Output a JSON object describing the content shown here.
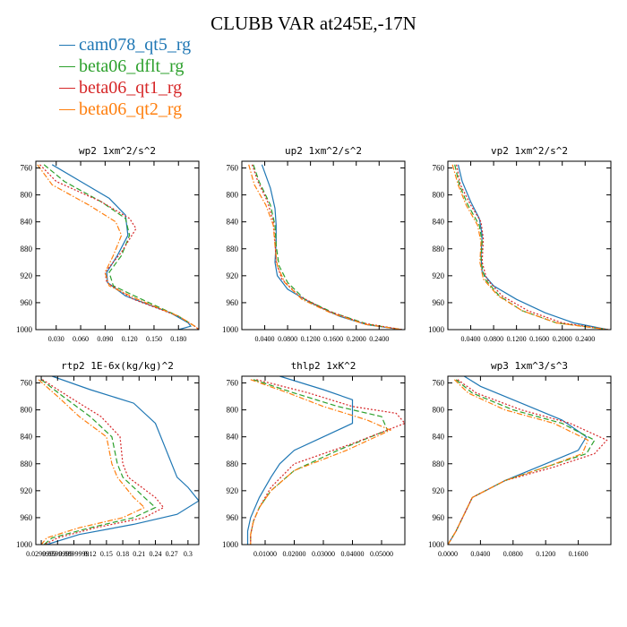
{
  "title": "CLUBB VAR at245E,-17N",
  "legend": [
    {
      "label": "cam078_qt5_rg",
      "color": "#1f77b4",
      "dash": "solid"
    },
    {
      "label": "beta06_dflt_rg",
      "color": "#2ca02c",
      "dash": "dashed"
    },
    {
      "label": "beta06_qt1_rg",
      "color": "#d62728",
      "dash": "dotted"
    },
    {
      "label": "beta06_qt2_rg",
      "color": "#ff7f0e",
      "dash": "dashdot"
    }
  ],
  "chart_data": [
    {
      "type": "line",
      "title": "wp2  1xm^2/s^2",
      "ylim": [
        1000,
        750
      ],
      "yticks": [
        760,
        800,
        840,
        880,
        920,
        960,
        1000
      ],
      "xlim": [
        0.005,
        0.205
      ],
      "xticks": [
        "0.030",
        "0.060",
        "0.090",
        "0.120",
        "0.150",
        "0.180"
      ],
      "xtick_values": [
        0.03,
        0.06,
        0.09,
        0.12,
        0.15,
        0.18
      ],
      "series": [
        {
          "name": "cam078_qt5_rg",
          "x": [
            0.025,
            0.06,
            0.095,
            0.115,
            0.118,
            0.105,
            0.092,
            0.093,
            0.115,
            0.17,
            0.192,
            0.195,
            0.18
          ],
          "y": [
            755,
            780,
            805,
            830,
            860,
            890,
            915,
            930,
            950,
            975,
            990,
            995,
            1000
          ]
        },
        {
          "name": "beta06_dflt_rg",
          "x": [
            0.015,
            0.04,
            0.085,
            0.115,
            0.12,
            0.11,
            0.095,
            0.1,
            0.135,
            0.18,
            0.2,
            0.205
          ],
          "y": [
            755,
            780,
            810,
            835,
            860,
            890,
            915,
            935,
            955,
            980,
            995,
            1000
          ]
        },
        {
          "name": "beta06_qt1_rg",
          "x": [
            0.01,
            0.03,
            0.085,
            0.12,
            0.128,
            0.11,
            0.09,
            0.092,
            0.125,
            0.18,
            0.2,
            0.205
          ],
          "y": [
            755,
            780,
            810,
            835,
            850,
            885,
            915,
            930,
            955,
            980,
            995,
            1000
          ]
        },
        {
          "name": "beta06_qt2_rg",
          "x": [
            0.007,
            0.025,
            0.07,
            0.103,
            0.11,
            0.1,
            0.09,
            0.095,
            0.13,
            0.18,
            0.2,
            0.205
          ],
          "y": [
            755,
            785,
            815,
            840,
            860,
            890,
            915,
            935,
            955,
            980,
            995,
            1000
          ]
        }
      ]
    },
    {
      "type": "line",
      "title": "up2  1xm^2/s^2",
      "ylim": [
        1000,
        750
      ],
      "yticks": [
        760,
        800,
        840,
        880,
        920,
        960,
        1000
      ],
      "xlim": [
        0.0,
        0.285
      ],
      "xticks": [
        "0.0400",
        "0.0800",
        "0.1200",
        "0.1600",
        "0.2000",
        "0.2400"
      ],
      "xtick_values": [
        0.04,
        0.08,
        0.12,
        0.16,
        0.2,
        0.24
      ],
      "series": [
        {
          "name": "cam078_qt5_rg",
          "x": [
            0.035,
            0.05,
            0.058,
            0.06,
            0.06,
            0.058,
            0.062,
            0.08,
            0.12,
            0.17,
            0.22,
            0.28
          ],
          "y": [
            755,
            790,
            820,
            845,
            870,
            900,
            920,
            940,
            960,
            980,
            993,
            1000
          ]
        },
        {
          "name": "beta06_dflt_rg",
          "x": [
            0.02,
            0.03,
            0.05,
            0.058,
            0.06,
            0.065,
            0.08,
            0.11,
            0.16,
            0.22,
            0.28
          ],
          "y": [
            755,
            780,
            815,
            845,
            875,
            905,
            930,
            955,
            975,
            992,
            1000
          ]
        },
        {
          "name": "beta06_qt1_rg",
          "x": [
            0.018,
            0.028,
            0.045,
            0.055,
            0.058,
            0.06,
            0.07,
            0.1,
            0.15,
            0.21,
            0.28
          ],
          "y": [
            755,
            780,
            810,
            840,
            870,
            900,
            925,
            950,
            972,
            990,
            1000
          ]
        },
        {
          "name": "beta06_qt2_rg",
          "x": [
            0.012,
            0.022,
            0.042,
            0.055,
            0.058,
            0.062,
            0.075,
            0.105,
            0.155,
            0.215,
            0.28
          ],
          "y": [
            755,
            785,
            815,
            845,
            875,
            905,
            930,
            955,
            975,
            992,
            1000
          ]
        }
      ]
    },
    {
      "type": "line",
      "title": "vp2  1xm^2/s^2",
      "ylim": [
        1000,
        750
      ],
      "yticks": [
        760,
        800,
        840,
        880,
        920,
        960,
        1000
      ],
      "xlim": [
        0.0,
        0.285
      ],
      "xticks": [
        "0.0400",
        "0.0800",
        "0.1200",
        "0.1600",
        "0.2000",
        "0.2400"
      ],
      "xtick_values": [
        0.04,
        0.08,
        0.12,
        0.16,
        0.2,
        0.24
      ],
      "series": [
        {
          "name": "cam078_qt5_rg",
          "x": [
            0.018,
            0.025,
            0.04,
            0.055,
            0.06,
            0.058,
            0.06,
            0.08,
            0.12,
            0.17,
            0.22,
            0.28
          ],
          "y": [
            755,
            780,
            810,
            835,
            860,
            890,
            915,
            935,
            955,
            975,
            990,
            1000
          ]
        },
        {
          "name": "beta06_dflt_rg",
          "x": [
            0.012,
            0.02,
            0.035,
            0.055,
            0.06,
            0.058,
            0.065,
            0.09,
            0.13,
            0.19,
            0.28
          ],
          "y": [
            755,
            785,
            815,
            845,
            870,
            900,
            925,
            950,
            972,
            990,
            1000
          ]
        },
        {
          "name": "beta06_qt1_rg",
          "x": [
            0.015,
            0.022,
            0.04,
            0.058,
            0.062,
            0.06,
            0.068,
            0.095,
            0.14,
            0.2,
            0.28
          ],
          "y": [
            755,
            785,
            815,
            840,
            865,
            900,
            925,
            950,
            972,
            990,
            1000
          ]
        },
        {
          "name": "beta06_qt2_rg",
          "x": [
            0.008,
            0.018,
            0.032,
            0.052,
            0.058,
            0.056,
            0.062,
            0.088,
            0.13,
            0.19,
            0.28
          ],
          "y": [
            755,
            785,
            815,
            845,
            870,
            900,
            925,
            950,
            972,
            990,
            1000
          ]
        }
      ]
    },
    {
      "type": "line",
      "title": "rtp2  1E-6x(kg/kg)^2",
      "ylim": [
        1000,
        750
      ],
      "yticks": [
        760,
        800,
        840,
        880,
        920,
        960,
        1000
      ],
      "xlim": [
        0.02,
        0.32
      ],
      "xticks": [
        "0.0299999",
        "0.0599999",
        "0.0899999",
        "0.12",
        "0.15",
        "0.18",
        "0.21",
        "0.24",
        "0.27",
        "0.3"
      ],
      "xtick_values": [
        0.03,
        0.06,
        0.09,
        0.12,
        0.15,
        0.18,
        0.21,
        0.24,
        0.27,
        0.3
      ],
      "series": [
        {
          "name": "cam078_qt5_rg",
          "x": [
            0.05,
            0.12,
            0.2,
            0.24,
            0.26,
            0.28,
            0.3,
            0.32,
            0.28,
            0.2,
            0.1,
            0.04
          ],
          "y": [
            750,
            770,
            790,
            820,
            860,
            900,
            915,
            935,
            955,
            970,
            985,
            1000
          ]
        },
        {
          "name": "beta06_dflt_rg",
          "x": [
            0.03,
            0.07,
            0.12,
            0.16,
            0.17,
            0.18,
            0.22,
            0.24,
            0.2,
            0.12,
            0.05,
            0.035
          ],
          "y": [
            755,
            780,
            810,
            840,
            880,
            900,
            930,
            945,
            960,
            975,
            990,
            1000
          ]
        },
        {
          "name": "beta06_qt1_rg",
          "x": [
            0.032,
            0.08,
            0.14,
            0.175,
            0.18,
            0.19,
            0.24,
            0.255,
            0.22,
            0.13,
            0.06,
            0.036
          ],
          "y": [
            755,
            780,
            810,
            840,
            880,
            900,
            930,
            945,
            960,
            975,
            990,
            1000
          ]
        },
        {
          "name": "beta06_qt2_rg",
          "x": [
            0.025,
            0.06,
            0.1,
            0.15,
            0.16,
            0.17,
            0.2,
            0.22,
            0.18,
            0.1,
            0.04,
            0.03
          ],
          "y": [
            755,
            780,
            810,
            840,
            880,
            900,
            930,
            945,
            960,
            975,
            990,
            1000
          ]
        }
      ]
    },
    {
      "type": "line",
      "title": "thlp2  1xK^2",
      "ylim": [
        1000,
        750
      ],
      "yticks": [
        760,
        800,
        840,
        880,
        920,
        960,
        1000
      ],
      "xlim": [
        0.002,
        0.058
      ],
      "xticks": [
        "0.01000",
        "0.02000",
        "0.03000",
        "0.04000",
        "0.05000"
      ],
      "xtick_values": [
        0.01,
        0.02,
        0.03,
        0.04,
        0.05
      ],
      "series": [
        {
          "name": "cam078_qt5_rg",
          "x": [
            0.015,
            0.03,
            0.04,
            0.04,
            0.03,
            0.02,
            0.015,
            0.012,
            0.008,
            0.005,
            0.004,
            0.004
          ],
          "y": [
            750,
            770,
            785,
            820,
            840,
            860,
            880,
            900,
            930,
            960,
            980,
            1000
          ]
        },
        {
          "name": "beta06_dflt_rg",
          "x": [
            0.006,
            0.02,
            0.035,
            0.05,
            0.052,
            0.035,
            0.02,
            0.012,
            0.008,
            0.006,
            0.005,
            0.005
          ],
          "y": [
            755,
            775,
            795,
            810,
            830,
            860,
            890,
            920,
            945,
            965,
            985,
            1000
          ]
        },
        {
          "name": "beta06_qt1_rg",
          "x": [
            0.007,
            0.025,
            0.04,
            0.055,
            0.058,
            0.04,
            0.02,
            0.012,
            0.008,
            0.006,
            0.005,
            0.005
          ],
          "y": [
            755,
            775,
            795,
            805,
            820,
            850,
            880,
            915,
            945,
            965,
            985,
            1000
          ]
        },
        {
          "name": "beta06_qt2_rg",
          "x": [
            0.005,
            0.018,
            0.03,
            0.045,
            0.053,
            0.038,
            0.02,
            0.012,
            0.008,
            0.006,
            0.005,
            0.005
          ],
          "y": [
            755,
            775,
            795,
            815,
            830,
            860,
            890,
            920,
            945,
            965,
            985,
            1000
          ]
        }
      ]
    },
    {
      "type": "line",
      "title": "wp3  1xm^3/s^3",
      "ylim": [
        1000,
        750
      ],
      "yticks": [
        760,
        800,
        840,
        880,
        920,
        960,
        1000
      ],
      "xlim": [
        0.0,
        0.2
      ],
      "xticks": [
        "0.0000",
        "0.0400",
        "0.0800",
        "0.1200",
        "0.1600"
      ],
      "xtick_values": [
        0.0,
        0.04,
        0.08,
        0.12,
        0.16
      ],
      "series": [
        {
          "name": "cam078_qt5_rg",
          "x": [
            0.02,
            0.04,
            0.09,
            0.14,
            0.17,
            0.16,
            0.12,
            0.07,
            0.03,
            0.02,
            0.01,
            0.0
          ],
          "y": [
            750,
            765,
            790,
            815,
            840,
            860,
            880,
            905,
            930,
            955,
            980,
            1000
          ]
        },
        {
          "name": "beta06_dflt_rg",
          "x": [
            0.01,
            0.03,
            0.08,
            0.14,
            0.18,
            0.17,
            0.12,
            0.07,
            0.03,
            0.02,
            0.01,
            0.0
          ],
          "y": [
            755,
            775,
            800,
            820,
            845,
            865,
            885,
            905,
            930,
            955,
            980,
            1000
          ]
        },
        {
          "name": "beta06_qt1_rg",
          "x": [
            0.012,
            0.035,
            0.09,
            0.15,
            0.195,
            0.18,
            0.13,
            0.07,
            0.03,
            0.02,
            0.01,
            0.0
          ],
          "y": [
            755,
            775,
            800,
            820,
            845,
            865,
            885,
            905,
            930,
            955,
            980,
            1000
          ]
        },
        {
          "name": "beta06_qt2_rg",
          "x": [
            0.008,
            0.025,
            0.07,
            0.13,
            0.172,
            0.165,
            0.12,
            0.07,
            0.03,
            0.02,
            0.01,
            0.0
          ],
          "y": [
            755,
            775,
            800,
            820,
            845,
            865,
            885,
            905,
            930,
            955,
            980,
            1000
          ]
        }
      ]
    }
  ]
}
